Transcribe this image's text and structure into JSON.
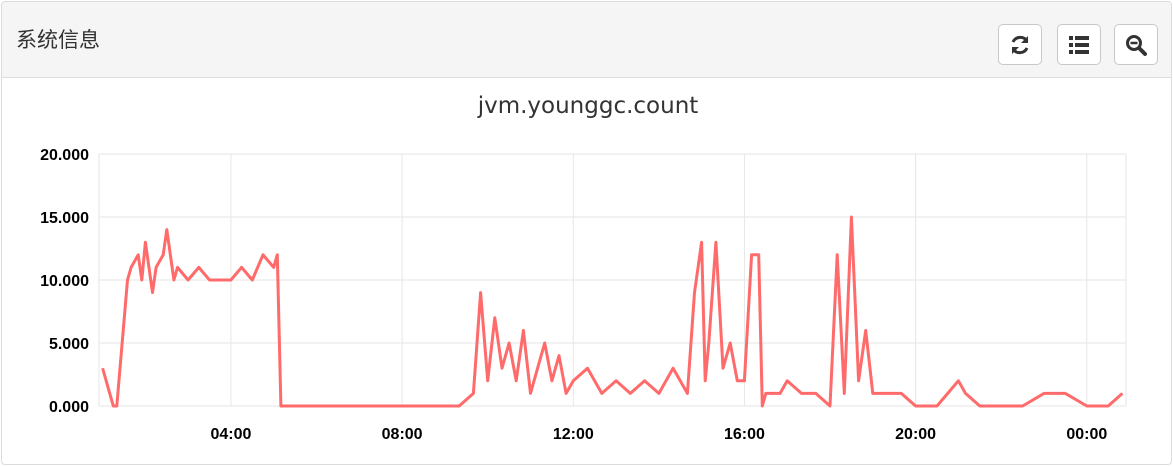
{
  "panel": {
    "title": "系统信息",
    "buttons": [
      {
        "name": "refresh",
        "icon": "refresh-icon"
      },
      {
        "name": "list",
        "icon": "list-icon"
      },
      {
        "name": "zoom",
        "icon": "zoom-icon"
      }
    ]
  },
  "colors": {
    "series": "#ff6b6b",
    "grid": "#e6e6e6",
    "header_bg": "#f5f5f5"
  },
  "chart_data": {
    "type": "line",
    "title": "jvm.younggc.count",
    "xlabel": "",
    "ylabel": "",
    "ylim": [
      0,
      20
    ],
    "xlim": [
      "00:55",
      "00:55 (+1d)"
    ],
    "grid": true,
    "yticks": [
      "0.000",
      "5.000",
      "10.000",
      "15.000",
      "20.000"
    ],
    "xticks": [
      "04:00",
      "08:00",
      "12:00",
      "16:00",
      "20:00",
      "00:00"
    ],
    "series": [
      {
        "x": [
          "01:00",
          "01:15",
          "01:20",
          "01:35",
          "01:40",
          "01:50",
          "01:55",
          "02:00",
          "02:10",
          "02:15",
          "02:25",
          "02:30",
          "02:40",
          "02:45",
          "03:00",
          "03:15",
          "03:30",
          "03:45",
          "04:00",
          "04:15",
          "04:30",
          "04:45",
          "05:00",
          "05:05",
          "05:10",
          "06:00",
          "06:40",
          "07:20",
          "08:00",
          "08:40",
          "09:20",
          "09:40",
          "09:50",
          "10:00",
          "10:10",
          "10:20",
          "10:30",
          "10:40",
          "10:50",
          "11:00",
          "11:10",
          "11:20",
          "11:30",
          "11:40",
          "11:50",
          "12:00",
          "12:20",
          "12:40",
          "13:00",
          "13:20",
          "13:40",
          "14:00",
          "14:20",
          "14:40",
          "14:50",
          "15:00",
          "15:05",
          "15:10",
          "15:20",
          "15:30",
          "15:40",
          "15:50",
          "16:00",
          "16:10",
          "16:20",
          "16:25",
          "16:30",
          "16:40",
          "16:50",
          "17:00",
          "17:20",
          "17:40",
          "18:00",
          "18:10",
          "18:20",
          "18:30",
          "18:40",
          "18:50",
          "19:00",
          "19:20",
          "19:40",
          "20:00",
          "20:30",
          "21:00",
          "21:10",
          "21:30",
          "22:00",
          "22:30",
          "23:00",
          "23:30",
          "00:00",
          "00:30",
          "00:50"
        ],
        "y": [
          3,
          0,
          0,
          10,
          11,
          12,
          10,
          13,
          9,
          11,
          12,
          14,
          10,
          11,
          10,
          11,
          10,
          10,
          10,
          11,
          10,
          12,
          11,
          12,
          0,
          0,
          0,
          0,
          0,
          0,
          0,
          1,
          9,
          2,
          7,
          3,
          5,
          2,
          6,
          1,
          3,
          5,
          2,
          4,
          1,
          2,
          3,
          1,
          2,
          1,
          2,
          1,
          3,
          1,
          9,
          13,
          2,
          5,
          13,
          3,
          5,
          2,
          2,
          12,
          12,
          0,
          1,
          1,
          1,
          2,
          1,
          1,
          0,
          12,
          1,
          15,
          2,
          6,
          1,
          1,
          1,
          0,
          0,
          2,
          1,
          0,
          0,
          0,
          1,
          1,
          0,
          0,
          1
        ]
      }
    ]
  }
}
